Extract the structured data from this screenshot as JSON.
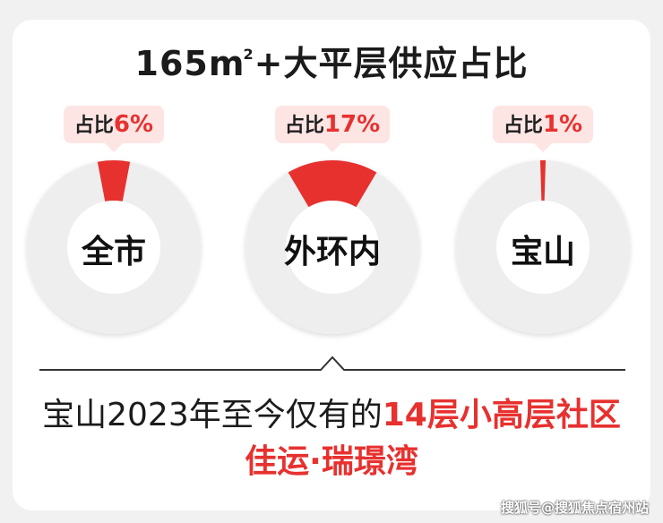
{
  "title": {
    "main": "165m",
    "sup": "2",
    "rest": "+大平层供应占比"
  },
  "chart_data": {
    "type": "pie",
    "variant": "donut",
    "title": "165m²+大平层供应占比",
    "categories": [
      "全市",
      "外环内",
      "宝山"
    ],
    "values": [
      6,
      17,
      1
    ],
    "unit": "%",
    "bubble_prefix": "占比",
    "labels": [
      "6%",
      "17%",
      "1%"
    ]
  },
  "colors": {
    "accent": "#e7312f",
    "ring": "#eeeeee",
    "bubble": "#fde5e4"
  },
  "footer": {
    "line1_plain": "宝山2023年至今仅有的",
    "line1_highlight": "14层小高层社区",
    "line2": "佳运·瑞璟湾"
  },
  "watermark": "搜狐号@搜狐焦点宿州站"
}
